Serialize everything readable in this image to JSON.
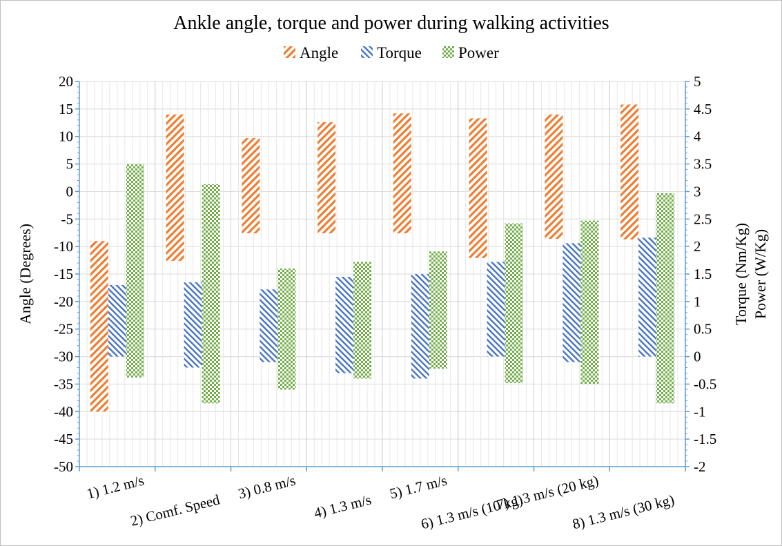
{
  "chart_data": {
    "type": "bar",
    "subtype": "floating-range",
    "title": "Ankle angle, torque and power during walking activities",
    "legend_position": "top",
    "grid": true,
    "categories": [
      "1) 1.2 m/s",
      "2) Comf. Speed",
      "3) 0.8 m/s",
      "4) 1.3 m/s",
      "5) 1.7 m/s",
      "6) 1.3 m/s (10 kg)",
      "7) 1.3 m/s (20 kg)",
      "8) 1.3 m/s (30 kg)"
    ],
    "y_left": {
      "label": "Angle (Degrees)",
      "min": -50,
      "max": 20,
      "step": 5,
      "ticks": [
        "20",
        "15",
        "10",
        "5",
        "0",
        "-5",
        "-10",
        "-15",
        "-20",
        "-25",
        "-30",
        "-35",
        "-40",
        "-45",
        "-50"
      ]
    },
    "y_right": {
      "label_line1": "Torque (Nm/Kg)",
      "label_line2": "Power (W/Kg)",
      "min": -2,
      "max": 5,
      "step": 0.5,
      "ticks": [
        "5",
        "4.5",
        "4",
        "3.5",
        "3",
        "2.5",
        "2",
        "1.5",
        "1",
        "0.5",
        "0",
        "-0.5",
        "-1",
        "-1.5",
        "-2"
      ]
    },
    "series": [
      {
        "name": "Angle",
        "axis": "left",
        "color": "#ED7D31",
        "pattern": "hatch-orange",
        "values": [
          [
            -40,
            -9
          ],
          [
            -12.6,
            14
          ],
          [
            -7.6,
            9.7
          ],
          [
            -7.6,
            12.6
          ],
          [
            -7.6,
            14.2
          ],
          [
            -12.1,
            13.3
          ],
          [
            -8.6,
            14
          ],
          [
            -8.7,
            15.8
          ]
        ]
      },
      {
        "name": "Torque",
        "axis": "right",
        "color": "#4472C4",
        "pattern": "hatch-blue",
        "values": [
          [
            0,
            1.3
          ],
          [
            -0.2,
            1.35
          ],
          [
            -0.1,
            1.22
          ],
          [
            -0.3,
            1.45
          ],
          [
            -0.4,
            1.5
          ],
          [
            0,
            1.72
          ],
          [
            -0.1,
            2.06
          ],
          [
            0,
            2.16
          ]
        ]
      },
      {
        "name": "Power",
        "axis": "right",
        "color": "#70AD47",
        "pattern": "checker-green",
        "values": [
          [
            -0.38,
            3.5
          ],
          [
            -0.85,
            3.13
          ],
          [
            -0.6,
            1.6
          ],
          [
            -0.4,
            1.72
          ],
          [
            -0.22,
            1.91
          ],
          [
            -0.48,
            2.42
          ],
          [
            -0.5,
            2.47
          ],
          [
            -0.85,
            2.97
          ]
        ]
      }
    ]
  }
}
